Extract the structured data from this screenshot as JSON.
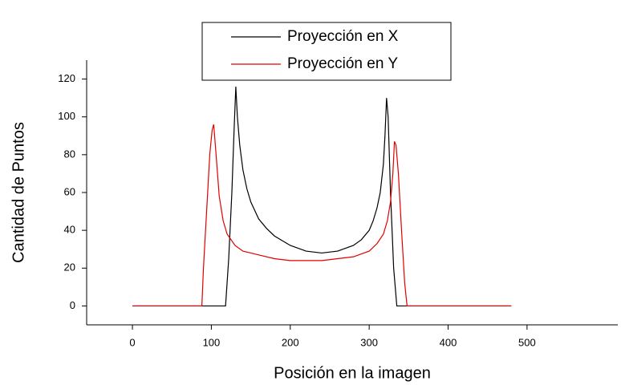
{
  "chart_data": {
    "type": "line",
    "x_label": "Posición en la imagen",
    "y_label": "Cantidad de Puntos",
    "xlim": [
      -58,
      615
    ],
    "xticks": [
      0,
      100,
      200,
      300,
      400,
      500
    ],
    "ylim": [
      -10,
      130
    ],
    "yticks": [
      0,
      20,
      40,
      60,
      80,
      100,
      120
    ],
    "legend": "top",
    "series": [
      {
        "name": "Proyección en X",
        "color": "#000000",
        "x": [
          0,
          118,
          122,
          126,
          129,
          131,
          133,
          136,
          140,
          145,
          150,
          160,
          170,
          180,
          200,
          220,
          240,
          260,
          280,
          290,
          300,
          305,
          310,
          314,
          318,
          320,
          322,
          324,
          327,
          331,
          335,
          340,
          480
        ],
        "values": [
          0,
          0,
          25,
          60,
          95,
          116,
          100,
          85,
          72,
          62,
          55,
          46,
          41,
          37,
          32,
          29,
          28,
          29,
          32,
          35,
          40,
          45,
          52,
          60,
          75,
          90,
          110,
          100,
          60,
          20,
          0,
          0,
          0
        ]
      },
      {
        "name": "Proyección en Y",
        "color": "#e00000",
        "x": [
          0,
          88,
          90,
          94,
          98,
          101,
          103,
          106,
          110,
          115,
          120,
          130,
          140,
          160,
          180,
          200,
          220,
          240,
          260,
          280,
          300,
          310,
          318,
          323,
          327,
          330,
          332,
          334,
          337,
          341,
          345,
          348,
          480
        ],
        "values": [
          0,
          0,
          20,
          50,
          80,
          93,
          96,
          80,
          58,
          45,
          38,
          32,
          29,
          27,
          25,
          24,
          24,
          24,
          25,
          26,
          29,
          33,
          38,
          45,
          55,
          70,
          87,
          85,
          70,
          40,
          12,
          0,
          0
        ]
      }
    ]
  }
}
